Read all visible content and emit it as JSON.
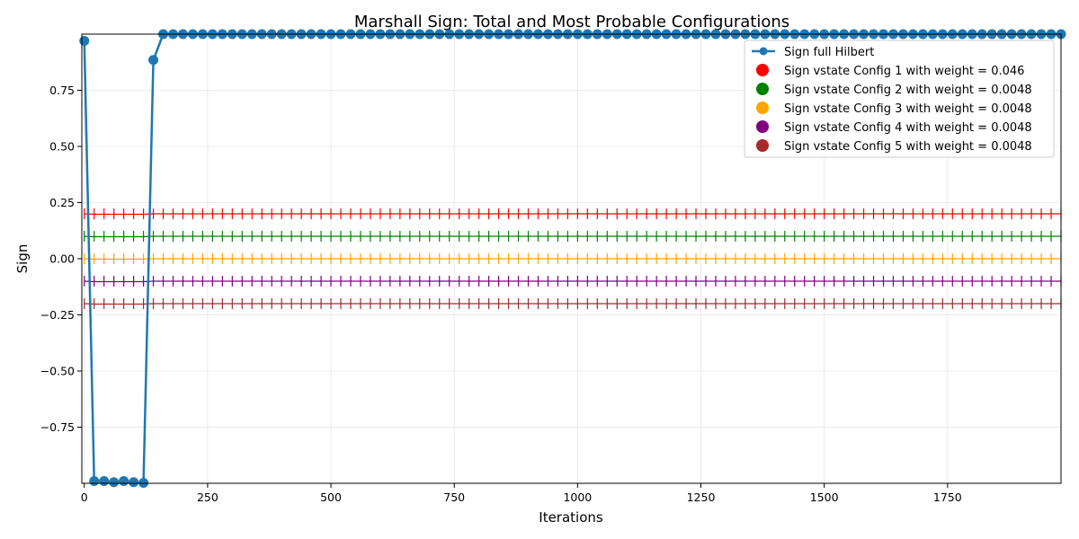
{
  "chart_data": {
    "type": "line",
    "title": "Marshall Sign: Total and Most Probable Configurations",
    "xlabel": "Iterations",
    "ylabel": "Sign",
    "xlim": [
      -5,
      1980
    ],
    "ylim": [
      -1.0,
      1.0
    ],
    "xticks": [
      0,
      250,
      500,
      750,
      1000,
      1250,
      1500,
      1750
    ],
    "yticks": [
      -0.75,
      -0.5,
      -0.25,
      0.0,
      0.25,
      0.5,
      0.75
    ],
    "xtick_labels": [
      "0",
      "250",
      "500",
      "750",
      "1000",
      "1250",
      "1500",
      "1750"
    ],
    "ytick_labels": [
      "−0.75",
      "−0.50",
      "−0.25",
      "0.00",
      "0.25",
      "0.50",
      "0.75"
    ],
    "grid": true,
    "legend_position": "top-right",
    "main_series": {
      "name": "Sign full Hilbert",
      "color": "#1f77b4",
      "x_start": 0,
      "x_step": 20,
      "x_end": 1980,
      "initial_values": [
        0.97,
        -0.99,
        -0.99,
        -0.995,
        -0.99,
        -0.995,
        -0.998,
        0.885
      ],
      "plateau_value": 1.0
    },
    "config_series": [
      {
        "name": "Sign vstate Config 1 with weight = 0.046",
        "color": "#ff0000",
        "offset": 0.2
      },
      {
        "name": "Sign vstate Config 2 with weight = 0.0048",
        "color": "#008000",
        "offset": 0.1
      },
      {
        "name": "Sign vstate Config 3 with weight = 0.0048",
        "color": "#ffa500",
        "offset": 0.0
      },
      {
        "name": "Sign vstate Config 4 with weight = 0.0048",
        "color": "#800080",
        "offset": -0.1
      },
      {
        "name": "Sign vstate Config 5 with weight = 0.0048",
        "color": "#a52a2a",
        "offset": -0.2
      }
    ]
  }
}
